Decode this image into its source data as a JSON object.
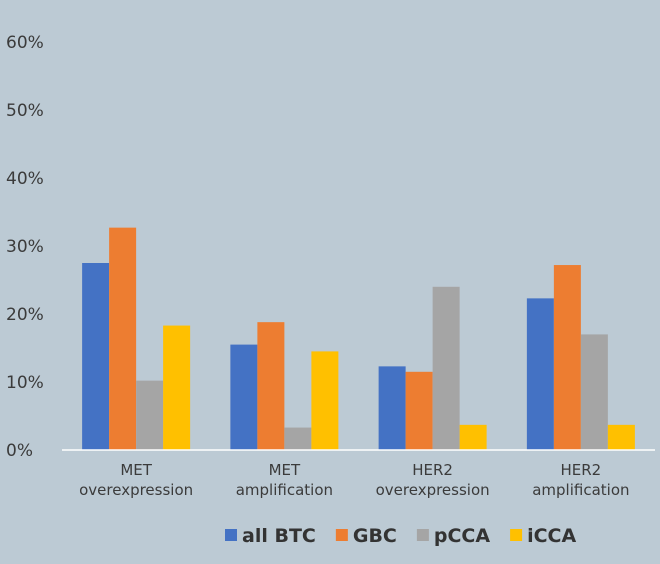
{
  "chart_data": {
    "type": "bar",
    "title": "",
    "xlabel": "",
    "ylabel": "",
    "ylim": [
      0,
      60
    ],
    "yticks": [
      "0%",
      "10%",
      "20%",
      "30%",
      "40%",
      "50%",
      "60%"
    ],
    "categories": [
      [
        "MET",
        "overexpression"
      ],
      [
        "MET",
        "amplification"
      ],
      [
        "HER2",
        "overexpression"
      ],
      [
        "HER2",
        "amplification"
      ]
    ],
    "series": [
      {
        "name": "all BTC",
        "color": "#4472c4",
        "values": [
          27.5,
          15.5,
          12.3,
          22.3
        ]
      },
      {
        "name": "GBC",
        "color": "#ed7d31",
        "values": [
          32.7,
          18.8,
          11.5,
          27.2
        ]
      },
      {
        "name": "pCCA",
        "color": "#a5a5a5",
        "values": [
          10.2,
          3.3,
          24.0,
          17.0
        ]
      },
      {
        "name": "iCCA",
        "color": "#ffc000",
        "values": [
          18.3,
          14.5,
          3.7,
          3.7
        ]
      }
    ],
    "grid": false,
    "legend_position": "bottom"
  }
}
